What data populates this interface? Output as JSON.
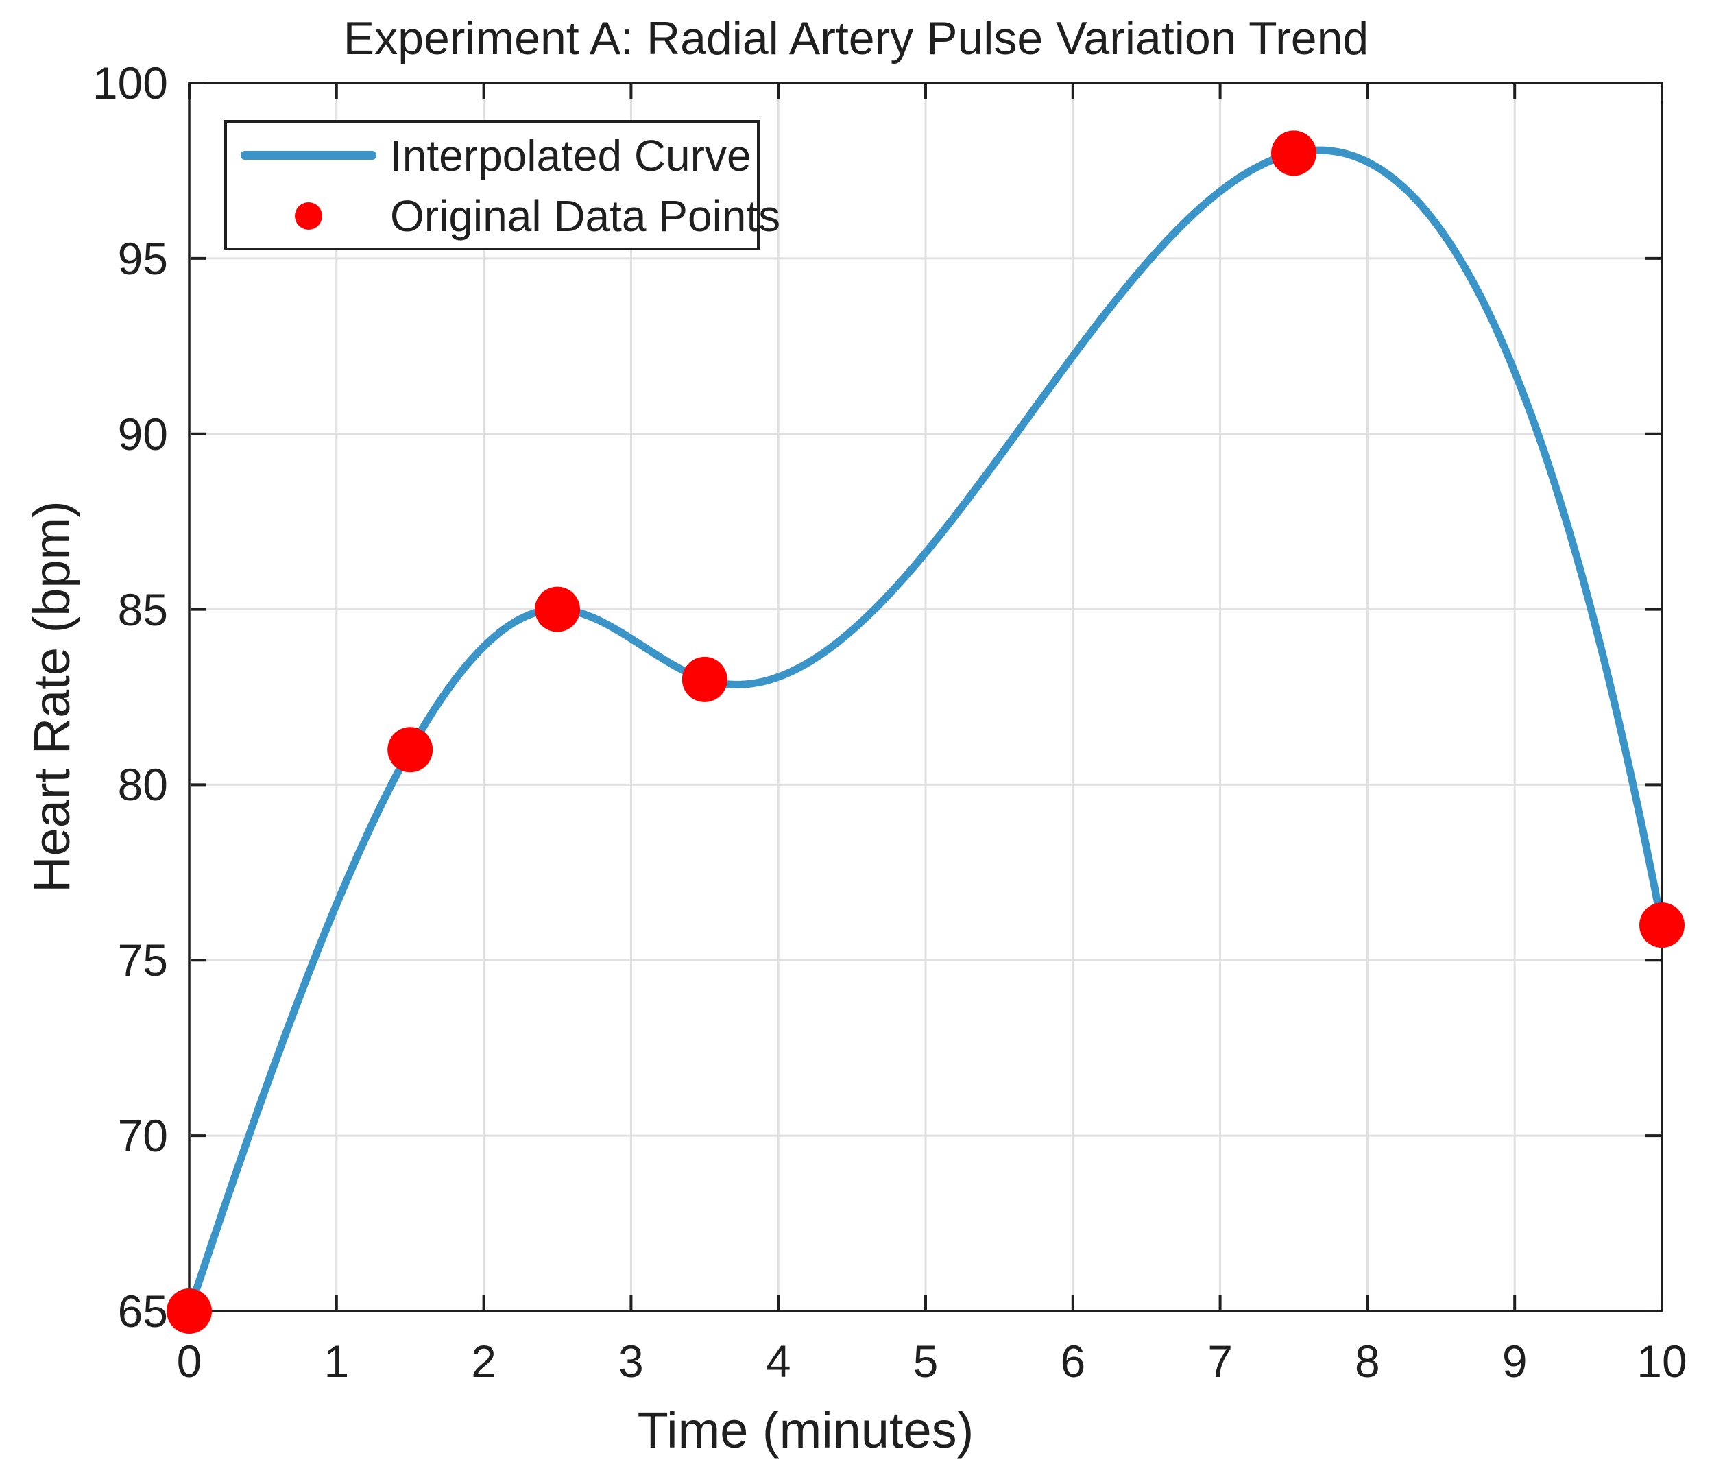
{
  "figure": {
    "title": "Experiment A: Radial Artery Pulse Variation Trend",
    "xlabel": "Time (minutes)",
    "ylabel": "Heart Rate (bpm)"
  },
  "legend": {
    "position": "top-left",
    "items": [
      {
        "label": "Interpolated Curve",
        "swatch": "line-sample",
        "color": "#3B94C7"
      },
      {
        "label": "Original Data Points",
        "swatch": "marker-sample",
        "color": "#FF0000"
      }
    ]
  },
  "chart_data": {
    "type": "line",
    "title": "Experiment A: Radial Artery Pulse Variation Trend",
    "xlabel": "Time (minutes)",
    "ylabel": "Heart Rate (bpm)",
    "xlim": [
      0,
      10
    ],
    "ylim": [
      65,
      100
    ],
    "x_ticks": [
      0,
      1,
      2,
      3,
      4,
      5,
      6,
      7,
      8,
      9,
      10
    ],
    "y_ticks": [
      65,
      70,
      75,
      80,
      85,
      90,
      95,
      100
    ],
    "grid": true,
    "legend_position": "top-left",
    "interpolation": "cubic-spline-not-a-knot",
    "series": [
      {
        "name": "Interpolated Curve",
        "render": "smooth-curve",
        "color": "#3B94C7",
        "x": [
          0,
          1.5,
          2.5,
          3.5,
          7.5,
          10
        ],
        "y": [
          65,
          81,
          85,
          83,
          98,
          76
        ]
      },
      {
        "name": "Original Data Points",
        "render": "scatter",
        "color": "#FF0000",
        "x": [
          0,
          1.5,
          2.5,
          3.5,
          7.5,
          10
        ],
        "y": [
          65,
          81,
          85,
          83,
          98,
          76
        ]
      }
    ]
  },
  "colors": {
    "curve": "#3B94C7",
    "marker": "#FF0000",
    "grid": "#E0E0E0",
    "axis": "#1F1F1F",
    "background": "#FFFFFF"
  }
}
